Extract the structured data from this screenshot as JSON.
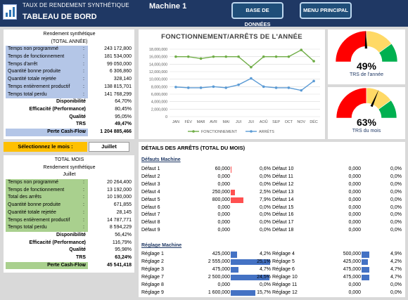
{
  "header": {
    "subtitle": "TAUX DE RENDEMENT SYNTHÉTIQUE",
    "title": "TABLEAU DE BORD",
    "machine": "Machine 1",
    "btn_database": "BASE DE DONNÉES",
    "btn_main_menu": "MENU PRINCIPAL"
  },
  "annual": {
    "caption1": "Rendement synthétique",
    "caption2": "(TOTAL ANNÉE)",
    "rows": [
      {
        "label": "Temps non programmé",
        "value": "243 172,800"
      },
      {
        "label": "Temps de fonctionnement",
        "value": "181 534,000"
      },
      {
        "label": "Temps d'arrêt",
        "value": "99 050,000"
      },
      {
        "label": "Quantité bonne produite",
        "value": "6 306,860"
      },
      {
        "label": "Quantité totale rejetée",
        "value": "328,140"
      },
      {
        "label": "Temps entièrement productif",
        "value": "138 815,701"
      },
      {
        "label": "Temps total perdu",
        "value": "141 768,299"
      }
    ],
    "summary": [
      {
        "label": "Disponibilité",
        "value": "64,70%"
      },
      {
        "label": "Efficacité (Performance)",
        "value": "80,45%"
      },
      {
        "label": "Qualité",
        "value": "95,05%"
      },
      {
        "label": "TRS",
        "value": "49,47%"
      },
      {
        "label": "Perte Cash-Flow",
        "value": "1 204 885,466"
      }
    ]
  },
  "month_selector": {
    "label": "Sélectionnez le mois :",
    "value": "Juillet"
  },
  "monthly": {
    "caption1": "TOTAL MOIS",
    "caption2": "Rendement synthétique",
    "caption3": "Juillet",
    "rows": [
      {
        "label": "Temps non programmé",
        "value": "20 264,400"
      },
      {
        "label": "Temps de fonctionnement",
        "value": "13 192,000"
      },
      {
        "label": "Total des arrêts",
        "value": "10 190,000"
      },
      {
        "label": "Quantité bonne produite",
        "value": "671,855"
      },
      {
        "label": "Quantité totale rejetée",
        "value": "28,145"
      },
      {
        "label": "Temps entièrement productif",
        "value": "14 787,771"
      },
      {
        "label": "Temps total perdu",
        "value": "8 594,229"
      }
    ],
    "summary": [
      {
        "label": "Disponibilité",
        "value": "56,42%"
      },
      {
        "label": "Efficacité (Performance)",
        "value": "116,79%"
      },
      {
        "label": "Qualité",
        "value": "95,98%"
      },
      {
        "label": "TRS",
        "value": "63,24%"
      },
      {
        "label": "Perte Cash-Flow",
        "value": "45 541,418"
      }
    ]
  },
  "chart_data": {
    "type": "line",
    "title": "FONCTIONNEMENT/ARRÊTS DE L'ANNÉE",
    "categories": [
      "JAN",
      "FÉV",
      "MAR",
      "AVR",
      "MAI",
      "JUI",
      "JUI",
      "AOÛ",
      "SEP",
      "OCT",
      "NOV",
      "DÉC"
    ],
    "series": [
      {
        "name": "FONCTIONNEMENT",
        "color": "#70ad47",
        "values": [
          16000000,
          16000000,
          15500000,
          16000000,
          16000000,
          16000000,
          13200000,
          16000000,
          16000000,
          16000000,
          17800000,
          14800000
        ]
      },
      {
        "name": "ARRÊTS",
        "color": "#5b9bd5",
        "values": [
          7900000,
          7700000,
          7700000,
          8000000,
          7700000,
          8500000,
          10200000,
          8000000,
          7700000,
          7700000,
          7000000,
          9500000
        ]
      }
    ],
    "yticks": [
      "0",
      "2,000,000",
      "4,000,000",
      "6,000,000",
      "8,000,000",
      "10,000,000",
      "12,000,000",
      "14,000,000",
      "16,000,000",
      "18,000,000"
    ],
    "ylim": [
      0,
      18000000
    ],
    "legend_position": "bottom",
    "grid": true
  },
  "gauges": [
    {
      "value": 0.49,
      "pct_label": "49%",
      "label": "TRS de l'année"
    },
    {
      "value": 0.63,
      "pct_label": "63%",
      "label": "TRS du mois"
    }
  ],
  "gauge_colors": [
    "#ff0000",
    "#ffd966",
    "#00b050"
  ],
  "details": {
    "title": "DÉTAILS DES ARRÊTS (TOTAL DU MOIS)",
    "machine_title": "Défauts Machine",
    "machine_left": [
      {
        "name": "Défaut 1",
        "value": "60,000",
        "pct": "0,6%",
        "frac": 0.006
      },
      {
        "name": "Défaut 2",
        "value": "0,000",
        "pct": "0,0%",
        "frac": 0
      },
      {
        "name": "Défaut 3",
        "value": "0,000",
        "pct": "0,0%",
        "frac": 0
      },
      {
        "name": "Défaut 4",
        "value": "250,000",
        "pct": "2,5%",
        "frac": 0.025
      },
      {
        "name": "Défaut 5",
        "value": "800,000",
        "pct": "7,9%",
        "frac": 0.079
      },
      {
        "name": "Défaut 6",
        "value": "0,000",
        "pct": "0,0%",
        "frac": 0
      },
      {
        "name": "Défaut 7",
        "value": "0,000",
        "pct": "0,0%",
        "frac": 0
      },
      {
        "name": "Défaut 8",
        "value": "0,000",
        "pct": "0,0%",
        "frac": 0
      },
      {
        "name": "Défaut 9",
        "value": "0,000",
        "pct": "0,0%",
        "frac": 0
      }
    ],
    "machine_right": [
      {
        "name": "Défaut 10",
        "value": "0,000",
        "pct": "0,0%",
        "frac": 0
      },
      {
        "name": "Défaut 11",
        "value": "0,000",
        "pct": "0,0%",
        "frac": 0
      },
      {
        "name": "Défaut 12",
        "value": "0,000",
        "pct": "0,0%",
        "frac": 0
      },
      {
        "name": "Défaut 13",
        "value": "0,000",
        "pct": "0,0%",
        "frac": 0
      },
      {
        "name": "Défaut 14",
        "value": "0,000",
        "pct": "0,0%",
        "frac": 0
      },
      {
        "name": "Défaut 15",
        "value": "0,000",
        "pct": "0,0%",
        "frac": 0
      },
      {
        "name": "Défaut 16",
        "value": "0,000",
        "pct": "0,0%",
        "frac": 0
      },
      {
        "name": "Défaut 17",
        "value": "0,000",
        "pct": "0,0%",
        "frac": 0
      },
      {
        "name": "Défaut 18",
        "value": "0,000",
        "pct": "0,0%",
        "frac": 0
      }
    ],
    "adjust_title": "Réglage Machine",
    "adjust_left": [
      {
        "name": "Réglage 1",
        "value": "425,000",
        "pct": "4,2%",
        "frac": 0.042
      },
      {
        "name": "Réglage 2",
        "value": "2 555,000",
        "pct": "25,1%",
        "frac": 0.251
      },
      {
        "name": "Réglage 3",
        "value": "475,000",
        "pct": "4,7%",
        "frac": 0.047
      },
      {
        "name": "Réglage 7",
        "value": "2 500,000",
        "pct": "24,5%",
        "frac": 0.245
      },
      {
        "name": "Réglage 8",
        "value": "0,000",
        "pct": "0,0%",
        "frac": 0
      },
      {
        "name": "Réglage 9",
        "value": "1 600,000",
        "pct": "15,7%",
        "frac": 0.157
      }
    ],
    "adjust_right": [
      {
        "name": "Réglage 4",
        "value": "500,000",
        "pct": "4,9%",
        "frac": 0.049
      },
      {
        "name": "Réglage 5",
        "value": "425,000",
        "pct": "4,2%",
        "frac": 0.042
      },
      {
        "name": "Réglage 6",
        "value": "475,000",
        "pct": "4,7%",
        "frac": 0.047
      },
      {
        "name": "Réglage 10",
        "value": "475,000",
        "pct": "4,7%",
        "frac": 0.047
      },
      {
        "name": "Réglage 11",
        "value": "0,000",
        "pct": "0,0%",
        "frac": 0
      },
      {
        "name": "Réglage 12",
        "value": "0,000",
        "pct": "0,0%",
        "frac": 0
      }
    ]
  }
}
